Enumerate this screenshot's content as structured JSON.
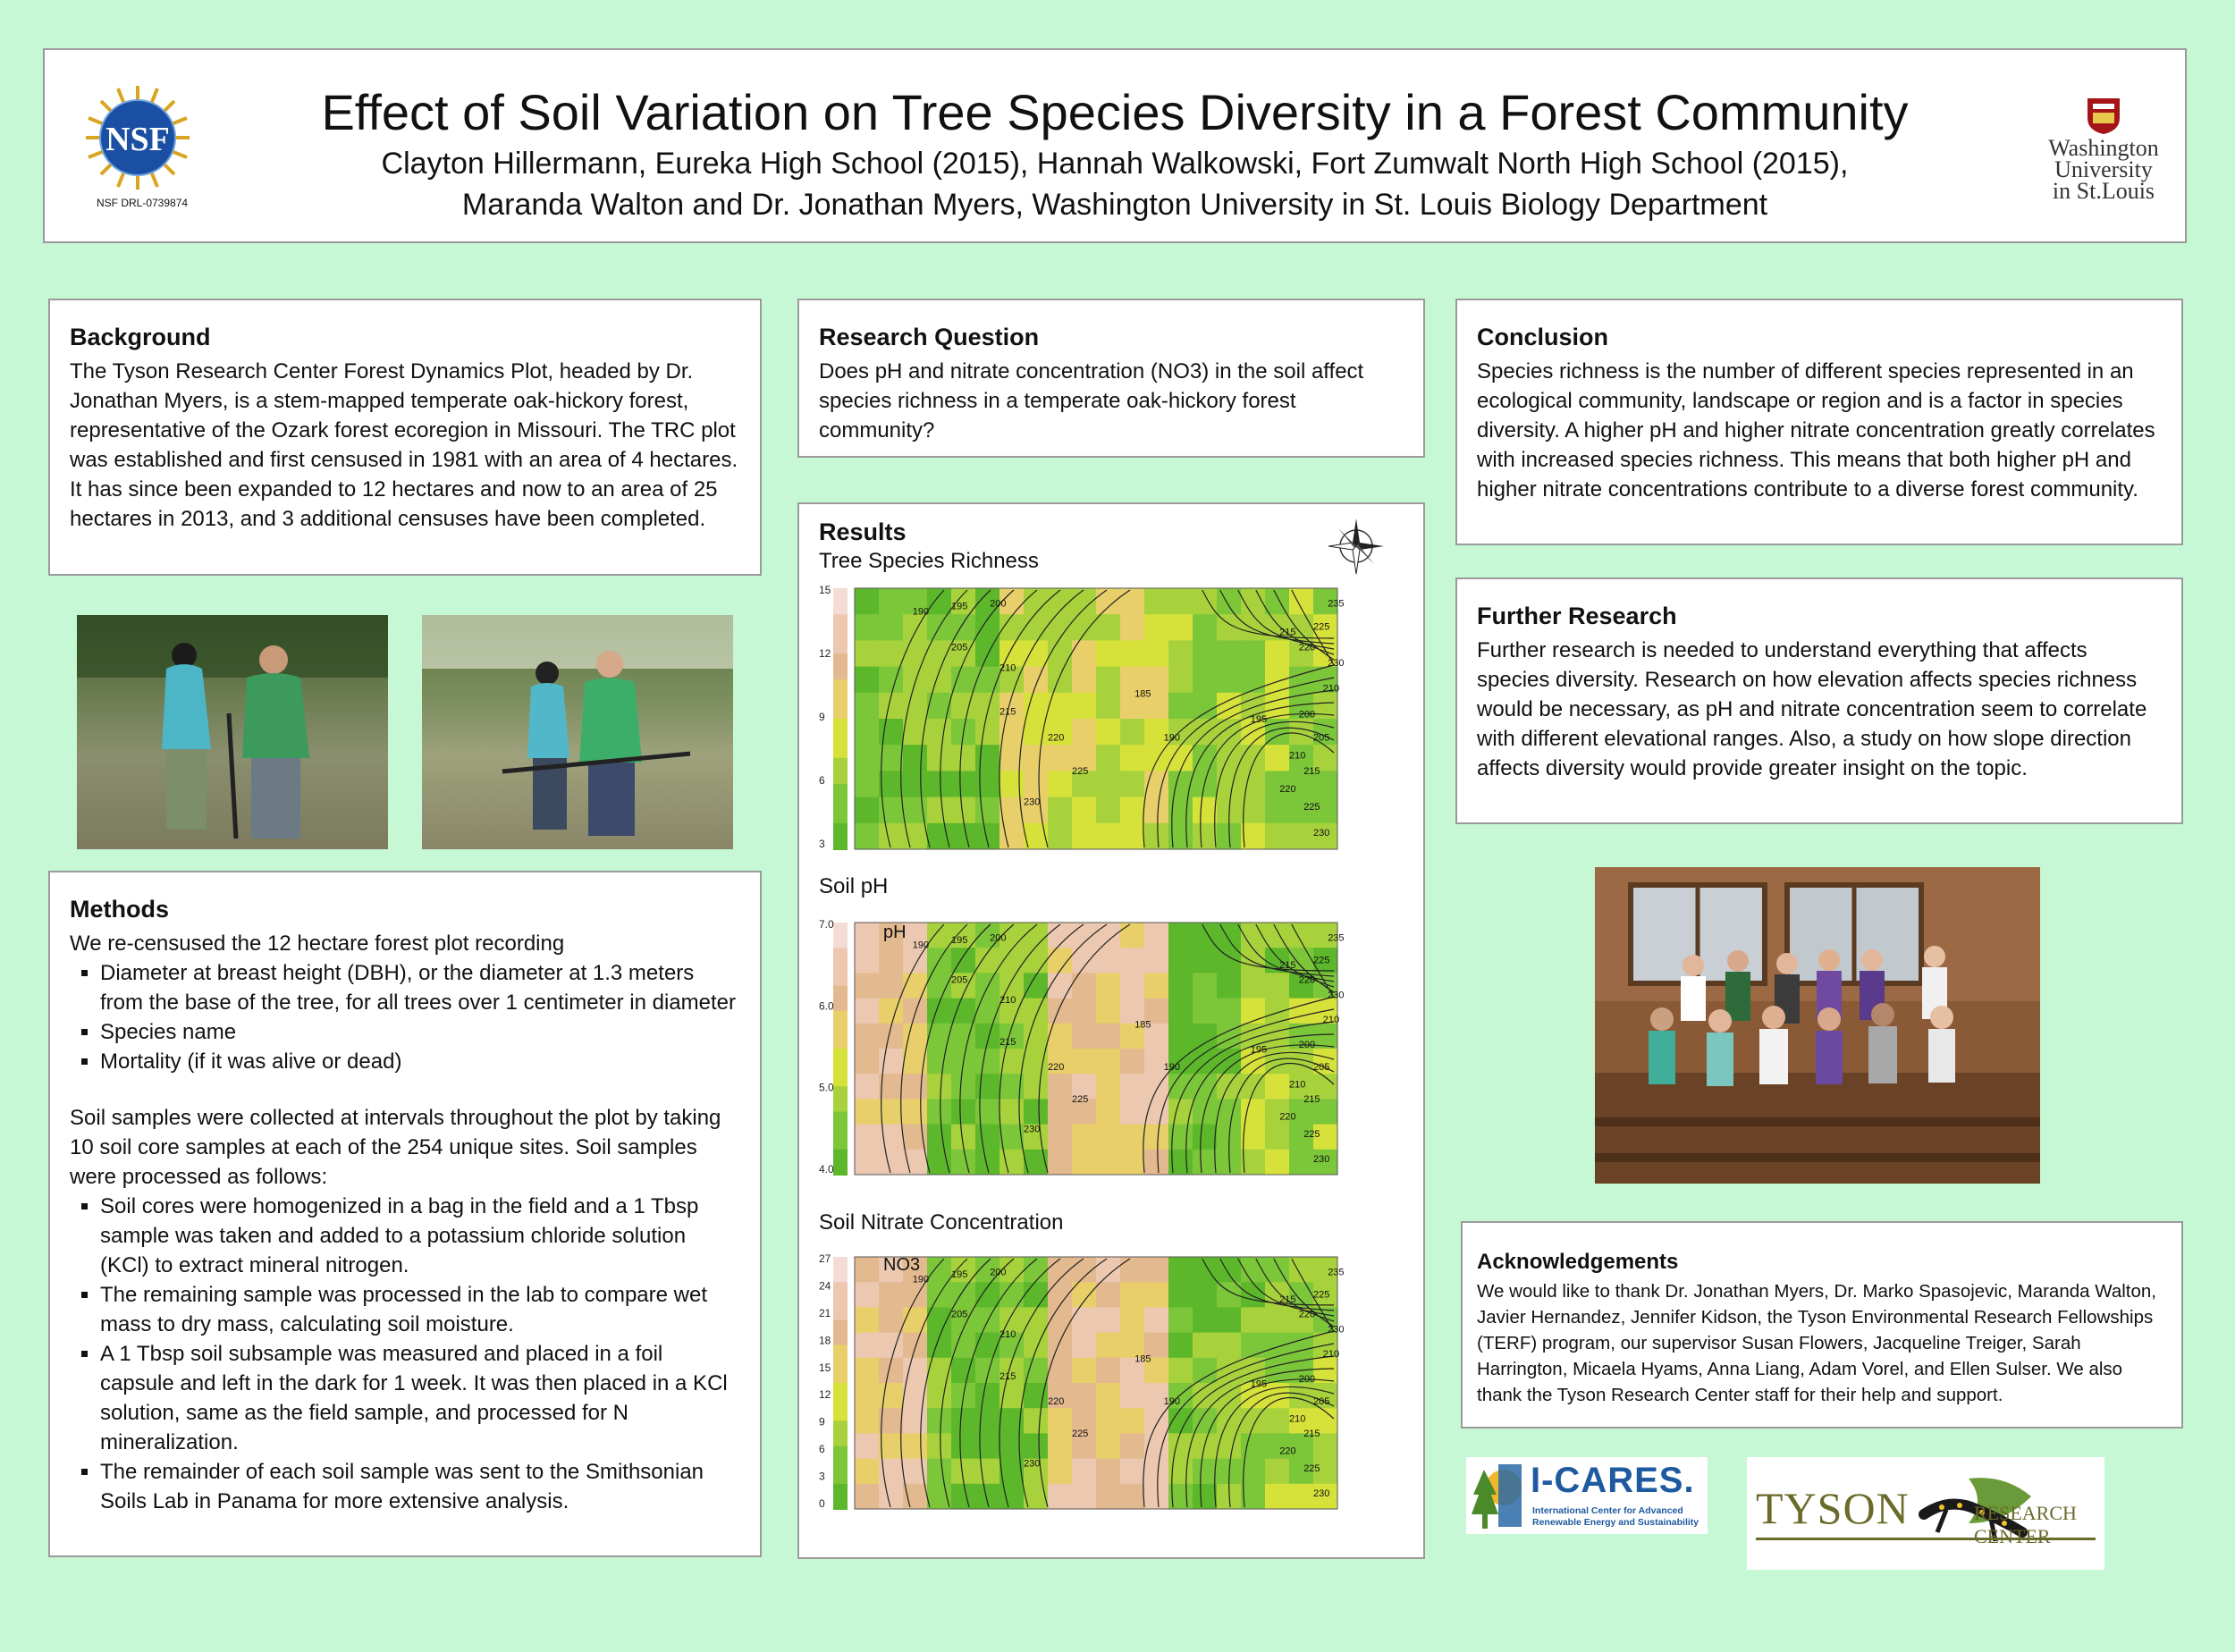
{
  "header": {
    "title": "Effect of Soil Variation on Tree Species Diversity in a Forest Community",
    "authors_line1": "Clayton Hillermann, Eureka High School (2015), Hannah Walkowski, Fort Zumwalt North High School (2015),",
    "authors_line2": "Maranda Walton and Dr. Jonathan Myers, Washington University in St. Louis Biology Department",
    "nsf_logo_text": "NSF",
    "nsf_grant": "NSF DRL-0739874",
    "wustl_line1": "Washington",
    "wustl_line2": "University",
    "wustl_line3": "in St.Louis"
  },
  "background": {
    "heading": "Background",
    "text": "The Tyson Research Center Forest Dynamics Plot, headed by Dr. Jonathan Myers, is a stem-mapped temperate oak-hickory forest, representative of the Ozark forest ecoregion in Missouri. The TRC plot was established and first censused in 1981 with an area of 4 hectares. It has since been expanded to 12 hectares and now to an area of 25 hectares in 2013, and 3 additional censuses have been completed."
  },
  "methods": {
    "heading": "Methods",
    "intro": "We re-censused the 12 hectare forest plot recording",
    "list1": [
      "Diameter at breast height (DBH), or the diameter at 1.3 meters from the base of the tree, for all trees over 1 centimeter in diameter",
      "Species name",
      "Mortality (if it was alive or dead)"
    ],
    "soil_intro": "Soil samples were collected at intervals throughout the plot by taking 10 soil core samples at each of the 254 unique sites. Soil samples were processed as follows:",
    "list2": [
      "Soil cores were homogenized in a bag in the field and a 1 Tbsp sample was taken and added to a potassium chloride solution (KCl) to extract mineral nitrogen.",
      "The remaining sample was processed in the lab to compare wet mass to dry mass, calculating soil moisture.",
      "A 1 Tbsp soil subsample was measured and placed in a foil capsule and left in the dark for 1 week. It was then placed in a KCl solution, same as the field sample, and processed for N mineralization.",
      "The remainder of each soil sample was sent to the Smithsonian Soils Lab in Panama for more extensive analysis."
    ]
  },
  "research_question": {
    "heading": "Research Question",
    "text": "Does pH and nitrate concentration (NO3)  in the soil affect species richness in a temperate oak-hickory forest community?"
  },
  "results": {
    "heading": "Results",
    "map1_title": "Tree Species Richness",
    "map1_scale": [
      "15",
      "12",
      "9",
      "6",
      "3"
    ],
    "map2_title": "Soil pH",
    "map2_scale": [
      "7.0",
      "6.0",
      "5.0",
      "4.0"
    ],
    "map2_label": "pH",
    "map3_title": "Soil Nitrate Concentration",
    "map3_scale": [
      "27",
      "24",
      "21",
      "18",
      "15",
      "12",
      "9",
      "6",
      "3",
      "0"
    ],
    "map3_label": "NO3",
    "contour_labels": [
      "190",
      "195",
      "200",
      "205",
      "210",
      "215",
      "220",
      "225",
      "230",
      "185",
      "190",
      "195",
      "200",
      "205",
      "210",
      "215",
      "220",
      "225",
      "230",
      "235",
      "215",
      "220",
      "225",
      "230",
      "210"
    ]
  },
  "conclusion": {
    "heading": "Conclusion",
    "text": "Species richness is the number of different species represented in an ecological community, landscape or region and is a factor in species diversity. A higher pH and higher nitrate concentration greatly correlates with increased species richness. This means that both higher pH and higher nitrate concentrations contribute to a diverse forest community."
  },
  "further_research": {
    "heading": "Further Research",
    "text": "Further research is needed to understand everything that affects species diversity. Research on how elevation affects species richness would be necessary, as pH and nitrate concentration seem to correlate with different elevational ranges. Also, a study on how slope direction affects diversity would provide greater insight on the topic."
  },
  "acknowledgements": {
    "heading": "Acknowledgements",
    "text": "We would like to thank Dr. Jonathan Myers, Dr. Marko Spasojevic, Maranda Walton, Javier Hernandez, Jennifer Kidson, the Tyson Environmental Research Fellowships (TERF) program, our supervisor Susan Flowers, Jacqueline Treiger, Sarah Harrington, Micaela Hyams, Anna Liang, Adam Vorel, and Ellen Sulser. We also thank the Tyson Research Center staff for their help and support."
  },
  "logos": {
    "icares_name": "I-CARES.",
    "icares_sub1": "International Center for Advanced",
    "icares_sub2": "Renewable Energy and Sustainability",
    "tyson_name": "TYSON",
    "tyson_sub": "RESEARCH CENTER"
  },
  "colors": {
    "background": "#c6f8d6",
    "border": "#9a9a9a",
    "map_green": "#5cb82a",
    "map_yellow": "#d6e23a",
    "map_tan": "#e3b98f",
    "map_pink": "#f3dcd4",
    "wustl_red": "#a51417"
  }
}
